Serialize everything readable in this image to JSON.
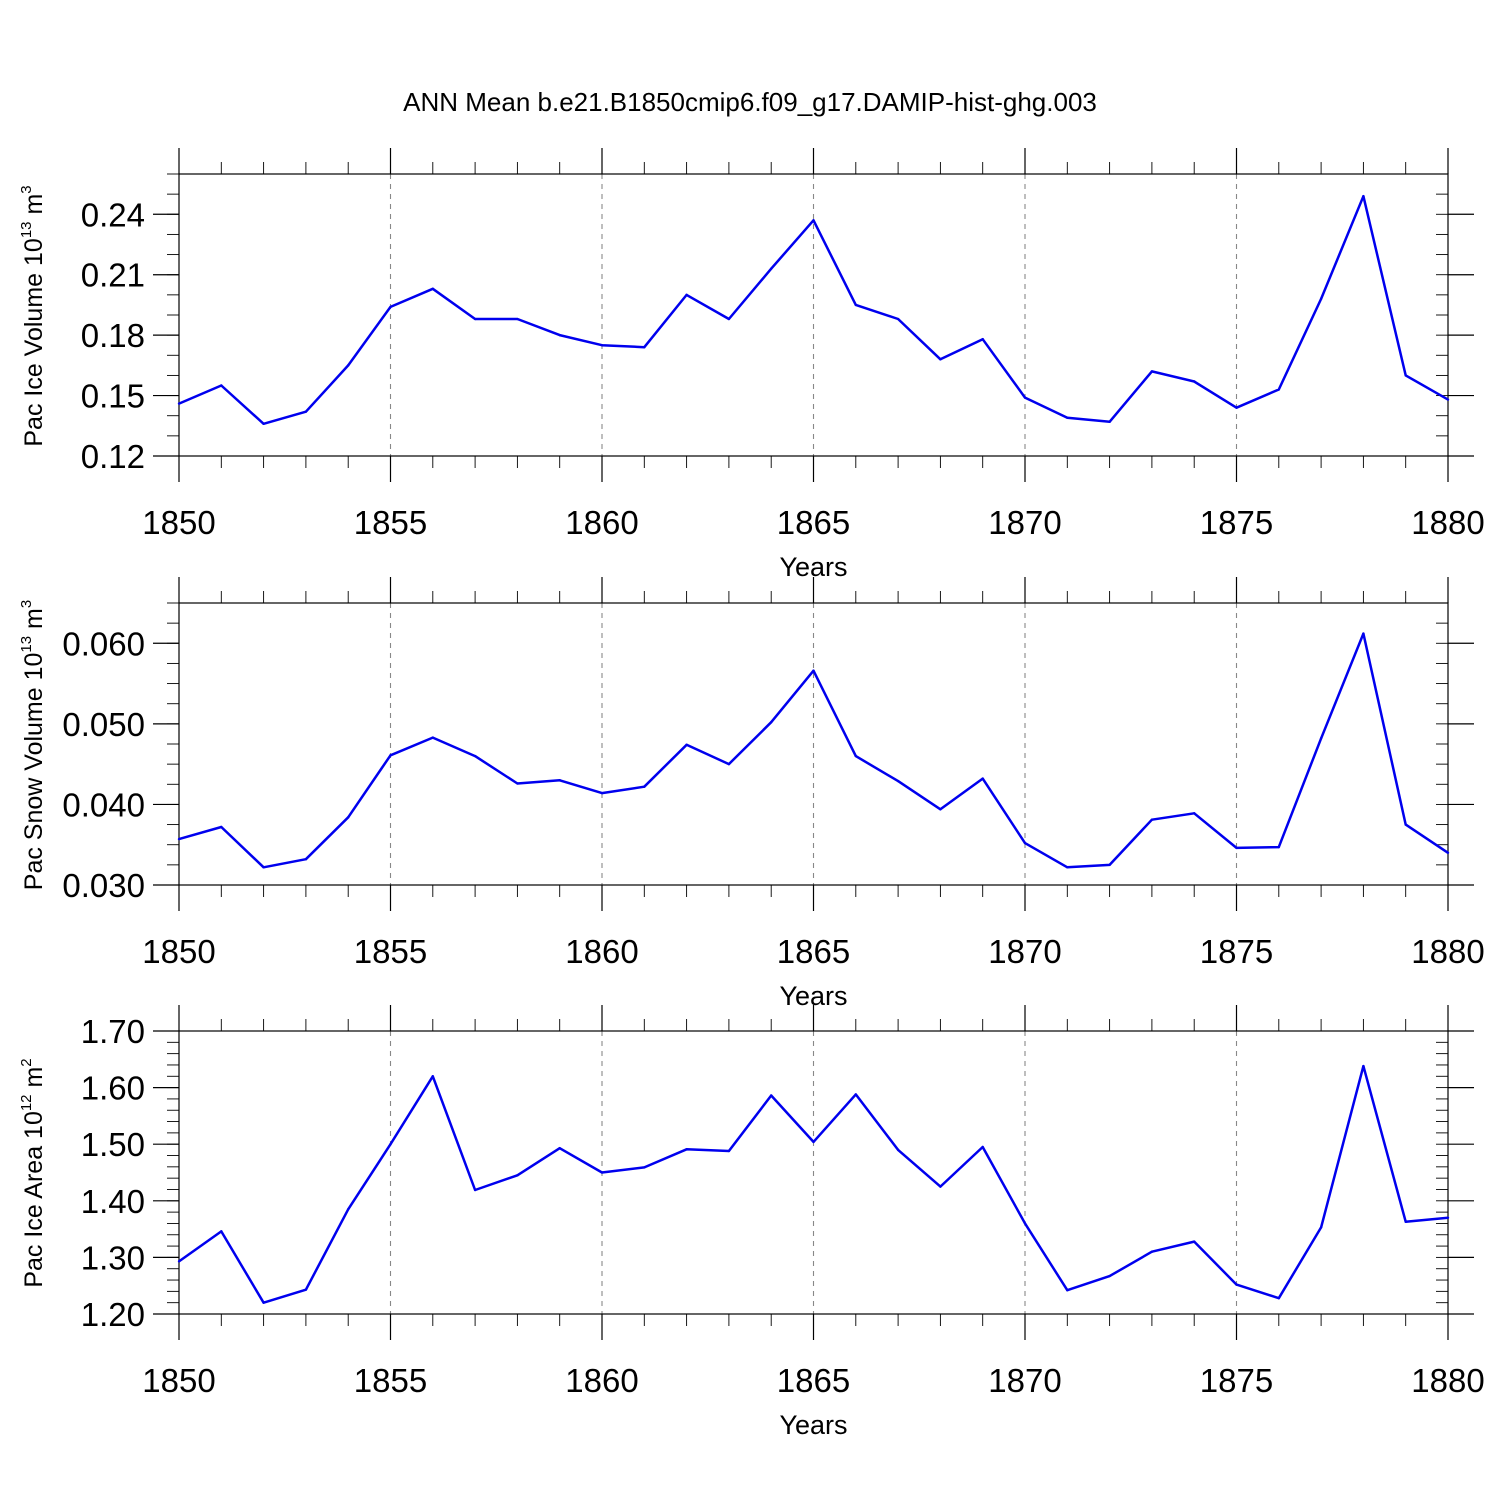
{
  "page": {
    "title": "ANN Mean b.e21.B1850cmip6.f09_g17.DAMIP-hist-ghg.003"
  },
  "chart_data": [
    {
      "type": "line",
      "xlabel": "Years",
      "ylabel": {
        "text": "Pac Ice Volume 10",
        "exp": "13",
        "unit": " m",
        "unit_exp": "3"
      },
      "xlim": [
        1850,
        1880
      ],
      "ylim": [
        0.12,
        0.26
      ],
      "xticks": [
        "1850",
        "1855",
        "1860",
        "1865",
        "1870",
        "1875",
        "1880"
      ],
      "yticks": [
        "0.12",
        "0.15",
        "0.18",
        "0.21",
        "0.24"
      ],
      "grid": "vertical dashed at major x ticks",
      "color": "#0000ee",
      "x": [
        1850,
        1851,
        1852,
        1853,
        1854,
        1855,
        1856,
        1857,
        1858,
        1859,
        1860,
        1861,
        1862,
        1863,
        1864,
        1865,
        1866,
        1867,
        1868,
        1869,
        1870,
        1871,
        1872,
        1873,
        1874,
        1875,
        1876,
        1877,
        1878,
        1879,
        1880
      ],
      "values": [
        0.146,
        0.155,
        0.136,
        0.142,
        0.165,
        0.194,
        0.203,
        0.188,
        0.188,
        0.18,
        0.175,
        0.174,
        0.2,
        0.188,
        0.213,
        0.237,
        0.195,
        0.188,
        0.168,
        0.178,
        0.149,
        0.139,
        0.137,
        0.162,
        0.157,
        0.144,
        0.153,
        0.198,
        0.249,
        0.16,
        0.148
      ]
    },
    {
      "type": "line",
      "xlabel": "Years",
      "ylabel": {
        "text": "Pac Snow Volume 10",
        "exp": "13",
        "unit": " m",
        "unit_exp": "3"
      },
      "xlim": [
        1850,
        1880
      ],
      "ylim": [
        0.03,
        0.065
      ],
      "xticks": [
        "1850",
        "1855",
        "1860",
        "1865",
        "1870",
        "1875",
        "1880"
      ],
      "yticks": [
        "0.030",
        "0.040",
        "0.050",
        "0.060"
      ],
      "grid": "vertical dashed at major x ticks",
      "color": "#0000ee",
      "x": [
        1850,
        1851,
        1852,
        1853,
        1854,
        1855,
        1856,
        1857,
        1858,
        1859,
        1860,
        1861,
        1862,
        1863,
        1864,
        1865,
        1866,
        1867,
        1868,
        1869,
        1870,
        1871,
        1872,
        1873,
        1874,
        1875,
        1876,
        1877,
        1878,
        1879,
        1880
      ],
      "values": [
        0.0357,
        0.0372,
        0.0322,
        0.0332,
        0.0384,
        0.0461,
        0.0483,
        0.046,
        0.0426,
        0.043,
        0.0414,
        0.0422,
        0.0474,
        0.045,
        0.0502,
        0.0566,
        0.046,
        0.0429,
        0.0394,
        0.0432,
        0.0352,
        0.0322,
        0.0325,
        0.0381,
        0.0389,
        0.0346,
        0.0347,
        0.0482,
        0.0612,
        0.0375,
        0.034
      ]
    },
    {
      "type": "line",
      "xlabel": "Years",
      "ylabel": {
        "text": "Pac Ice Area 10",
        "exp": "12",
        "unit": " m",
        "unit_exp": "2"
      },
      "xlim": [
        1850,
        1880
      ],
      "ylim": [
        1.2,
        1.7
      ],
      "xticks": [
        "1850",
        "1855",
        "1860",
        "1865",
        "1870",
        "1875",
        "1880"
      ],
      "yticks": [
        "1.20",
        "1.30",
        "1.40",
        "1.50",
        "1.60",
        "1.70"
      ],
      "grid": "vertical dashed at major x ticks",
      "color": "#0000ee",
      "x": [
        1850,
        1851,
        1852,
        1853,
        1854,
        1855,
        1856,
        1857,
        1858,
        1859,
        1860,
        1861,
        1862,
        1863,
        1864,
        1865,
        1866,
        1867,
        1868,
        1869,
        1870,
        1871,
        1872,
        1873,
        1874,
        1875,
        1876,
        1877,
        1878,
        1879,
        1880
      ],
      "values": [
        1.293,
        1.346,
        1.22,
        1.243,
        1.385,
        1.5,
        1.62,
        1.419,
        1.445,
        1.493,
        1.45,
        1.459,
        1.491,
        1.488,
        1.586,
        1.504,
        1.588,
        1.49,
        1.425,
        1.495,
        1.36,
        1.242,
        1.267,
        1.31,
        1.328,
        1.252,
        1.228,
        1.353,
        1.638,
        1.363,
        1.37
      ]
    }
  ]
}
